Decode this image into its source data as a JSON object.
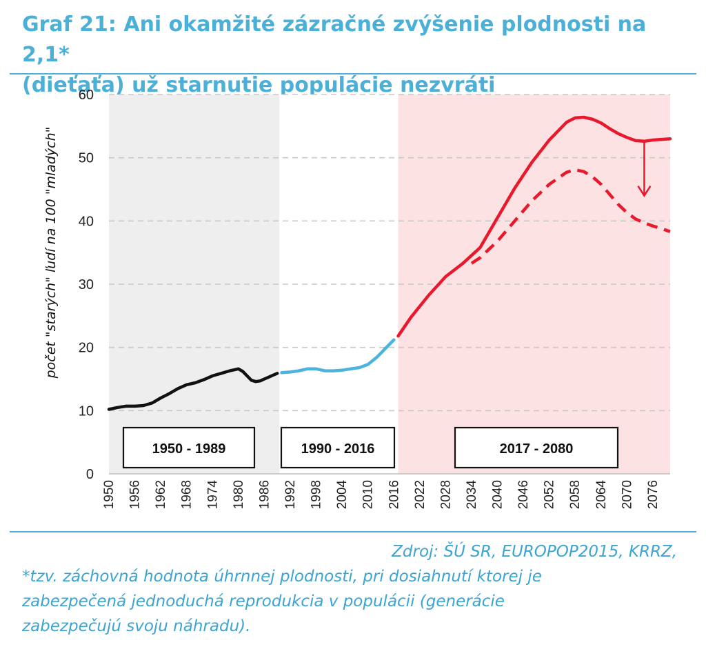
{
  "title": {
    "line1": "Graf 21: Ani okamžité zázračné zvýšenie plodnosti na 2,1*",
    "line2": "(dieťaťa) už starnutie populácie nezvráti"
  },
  "footer": {
    "source": "Zdroj: ŠÚ SR, EUROPOP2015, KRRZ,",
    "note_line1": "*tzv. záchovná hodnota úhrnnej plodnosti, pri dosiahnutí ktorej je",
    "note_line2": "zabezpečená jednoduchá reprodukcia v populácii (generácie",
    "note_line3": "zabezpečujú svoju náhradu)."
  },
  "chart_data": {
    "type": "line",
    "title": "",
    "xlabel": "",
    "ylabel": "počet \"starých\" ľudí na 100 \"mladých\"",
    "xlim": [
      1950,
      2080
    ],
    "ylim": [
      0,
      60
    ],
    "yticks": [
      0,
      10,
      20,
      30,
      40,
      50,
      60
    ],
    "xticks": [
      1950,
      1956,
      1962,
      1968,
      1974,
      1980,
      1986,
      1992,
      1998,
      2004,
      2010,
      2016,
      2022,
      2028,
      2034,
      2040,
      2046,
      2052,
      2058,
      2064,
      2070,
      2076
    ],
    "grid": "horizontal dashed",
    "periods": [
      {
        "label": "1950 - 1989",
        "from": 1950,
        "to": 1989.5,
        "shade": "#eeeeee"
      },
      {
        "label": "1990 - 2016",
        "from": 1989.5,
        "to": 2017,
        "shade": "#ffffff"
      },
      {
        "label": "2017 - 2080",
        "from": 2017,
        "to": 2080,
        "shade": "#fde2e4"
      }
    ],
    "colors": {
      "historic": "#111111",
      "recent": "#4bb3dc",
      "projection": "#e8192c",
      "grid": "#c8c8c8",
      "axis_text": "#222222"
    },
    "series": [
      {
        "segment": "1950-1989",
        "style": "solid",
        "color": "#111111",
        "x": [
          1950,
          1952,
          1954,
          1956,
          1958,
          1960,
          1962,
          1964,
          1966,
          1968,
          1970,
          1972,
          1974,
          1976,
          1978,
          1980,
          1981,
          1982,
          1983,
          1984,
          1985,
          1986,
          1987,
          1988,
          1989
        ],
        "y": [
          10.2,
          10.5,
          10.7,
          10.7,
          10.8,
          11.2,
          12.0,
          12.7,
          13.5,
          14.1,
          14.4,
          14.9,
          15.5,
          15.9,
          16.3,
          16.6,
          16.2,
          15.5,
          14.8,
          14.6,
          14.7,
          15.0,
          15.3,
          15.6,
          15.9
        ]
      },
      {
        "segment": "1990-2016",
        "style": "solid",
        "color": "#4bb3dc",
        "x": [
          1990,
          1992,
          1994,
          1996,
          1998,
          2000,
          2002,
          2004,
          2006,
          2008,
          2010,
          2012,
          2013,
          2014,
          2015,
          2016
        ],
        "y": [
          16.0,
          16.1,
          16.3,
          16.6,
          16.6,
          16.3,
          16.3,
          16.4,
          16.6,
          16.8,
          17.3,
          18.4,
          19.1,
          19.8,
          20.5,
          21.2
        ]
      },
      {
        "segment": "2017-2080",
        "style": "solid",
        "color": "#e8192c",
        "x": [
          2017,
          2020,
          2024,
          2028,
          2032,
          2036,
          2040,
          2044,
          2048,
          2052,
          2056,
          2058,
          2060,
          2062,
          2064,
          2066,
          2068,
          2070,
          2072,
          2074,
          2076,
          2078,
          2080
        ],
        "y": [
          21.8,
          24.8,
          28.2,
          31.2,
          33.3,
          35.8,
          40.5,
          45.2,
          49.3,
          52.8,
          55.6,
          56.3,
          56.4,
          56.1,
          55.5,
          54.6,
          53.8,
          53.2,
          52.7,
          52.6,
          52.8,
          52.9,
          53.0
        ]
      },
      {
        "segment": "2017-2080 (fertility 2.1)",
        "style": "dashed",
        "color": "#e8192c",
        "x": [
          2034,
          2036,
          2040,
          2044,
          2048,
          2052,
          2056,
          2058,
          2060,
          2062,
          2064,
          2066,
          2068,
          2070,
          2072,
          2074,
          2076,
          2078,
          2080
        ],
        "y": [
          33.3,
          34.2,
          36.8,
          40.0,
          43.2,
          45.8,
          47.7,
          48.1,
          47.8,
          47.0,
          45.8,
          44.2,
          42.6,
          41.3,
          40.3,
          39.7,
          39.2,
          38.8,
          38.3
        ]
      }
    ],
    "annotations": [
      {
        "type": "arrow-down",
        "x": 2074,
        "from": 52.4,
        "to": 44.0,
        "color": "#e8192c"
      }
    ]
  }
}
